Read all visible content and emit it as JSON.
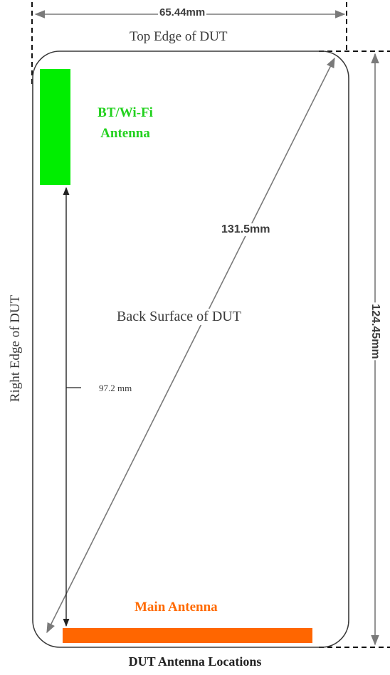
{
  "labels": {
    "width": "65.44mm",
    "top_edge": "Top Edge of DUT",
    "bt_wifi_line1": "BT/Wi-Fi",
    "bt_wifi_line2": "Antenna",
    "diagonal": "131.5mm",
    "back_surface": "Back Surface of DUT",
    "vertical_distance": "97.2 mm",
    "right_edge": "Right Edge of DUT",
    "height": "124.45mm",
    "main_antenna": "Main Antenna",
    "caption": "DUT Antenna Locations"
  },
  "colors": {
    "bt_wifi_antenna": "#00ee00",
    "bt_wifi_text": "#22d11e",
    "main_antenna": "#ff6600",
    "main_antenna_text": "#ff6a00",
    "dimension_lines": "#7a7a7a",
    "outline": "#3a3a3a"
  }
}
